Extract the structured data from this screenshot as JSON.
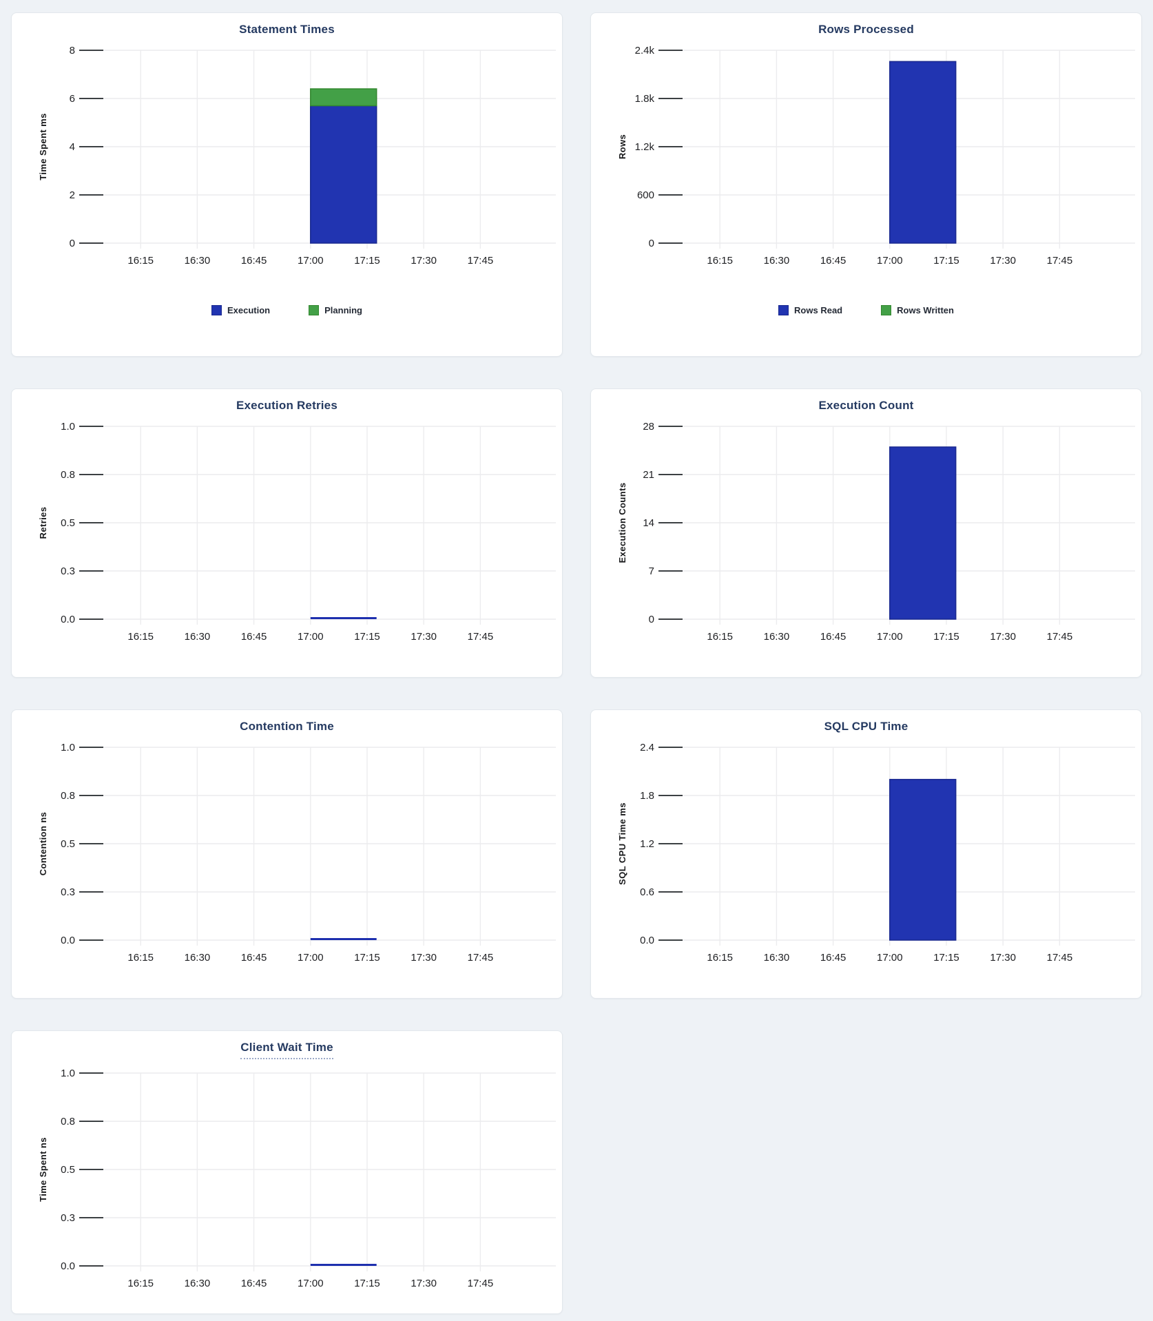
{
  "chart_data": [
    {
      "id": "statement-times",
      "type": "bar",
      "title": "Statement Times",
      "title_underlined": false,
      "ylabel": "Time Spent ms",
      "ymax": 8,
      "ytick_labels": [
        "8",
        "6",
        "4",
        "2",
        "0"
      ],
      "x_tick_labels": [
        "16:15",
        "16:30",
        "16:45",
        "17:00",
        "17:15",
        "17:30",
        "17:45"
      ],
      "x_tick_minutes": [
        15,
        30,
        45,
        60,
        75,
        90,
        105
      ],
      "x_domain_minutes": [
        0,
        125
      ],
      "bar_x_minutes": [
        60,
        77.5
      ],
      "grid": "on",
      "legend_position": "bottom-center",
      "series": [
        {
          "name": "Execution",
          "value": 5.7,
          "color": "#2134b1",
          "border": "#19288f"
        },
        {
          "name": "Planning",
          "value": 0.7,
          "color": "#43a047",
          "border": "#33872f"
        }
      ],
      "legend": [
        {
          "label": "Execution",
          "color": "#2134b1",
          "border": "#19288f"
        },
        {
          "label": "Planning",
          "color": "#43a047",
          "border": "#33872f"
        }
      ]
    },
    {
      "id": "rows-processed",
      "type": "bar",
      "title": "Rows Processed",
      "title_underlined": false,
      "ylabel": "Rows",
      "ymax": 2400,
      "ytick_labels": [
        "2.4k",
        "1.8k",
        "1.2k",
        "600",
        "0"
      ],
      "x_tick_labels": [
        "16:15",
        "16:30",
        "16:45",
        "17:00",
        "17:15",
        "17:30",
        "17:45"
      ],
      "x_tick_minutes": [
        15,
        30,
        45,
        60,
        75,
        90,
        105
      ],
      "x_domain_minutes": [
        0,
        125
      ],
      "bar_x_minutes": [
        60,
        77.5
      ],
      "grid": "on",
      "legend_position": "bottom-center",
      "series": [
        {
          "name": "Rows Read",
          "value": 2260,
          "color": "#2134b1",
          "border": "#19288f"
        },
        {
          "name": "Rows Written",
          "value": 0,
          "color": "#43a047",
          "border": "#33872f"
        }
      ],
      "legend": [
        {
          "label": "Rows Read",
          "color": "#2134b1",
          "border": "#19288f"
        },
        {
          "label": "Rows Written",
          "color": "#43a047",
          "border": "#33872f"
        }
      ]
    },
    {
      "id": "execution-retries",
      "type": "bar",
      "title": "Execution Retries",
      "title_underlined": false,
      "ylabel": "Retries",
      "ymax": 1,
      "ytick_labels": [
        "1.0",
        "0.8",
        "0.5",
        "0.3",
        "0.0"
      ],
      "x_tick_labels": [
        "16:15",
        "16:30",
        "16:45",
        "17:00",
        "17:15",
        "17:30",
        "17:45"
      ],
      "x_tick_minutes": [
        15,
        30,
        45,
        60,
        75,
        90,
        105
      ],
      "x_domain_minutes": [
        0,
        125
      ],
      "bar_x_minutes": [
        60,
        77.5
      ],
      "grid": "on",
      "legend_position": "none",
      "series": [
        {
          "name": "Retries",
          "value": 0,
          "color": "#2134b1",
          "border": "#19288f"
        }
      ],
      "zero_line_color": "#1d2fae"
    },
    {
      "id": "execution-count",
      "type": "bar",
      "title": "Execution Count",
      "title_underlined": false,
      "ylabel": "Execution Counts",
      "ymax": 28,
      "ytick_labels": [
        "28",
        "21",
        "14",
        "7",
        "0"
      ],
      "x_tick_labels": [
        "16:15",
        "16:30",
        "16:45",
        "17:00",
        "17:15",
        "17:30",
        "17:45"
      ],
      "x_tick_minutes": [
        15,
        30,
        45,
        60,
        75,
        90,
        105
      ],
      "x_domain_minutes": [
        0,
        125
      ],
      "bar_x_minutes": [
        60,
        77.5
      ],
      "grid": "on",
      "legend_position": "none",
      "series": [
        {
          "name": "Execution Count",
          "value": 25,
          "color": "#2134b1",
          "border": "#19288f"
        }
      ]
    },
    {
      "id": "contention-time",
      "type": "bar",
      "title": "Contention Time",
      "title_underlined": false,
      "ylabel": "Contention ns",
      "ymax": 1,
      "ytick_labels": [
        "1.0",
        "0.8",
        "0.5",
        "0.3",
        "0.0"
      ],
      "x_tick_labels": [
        "16:15",
        "16:30",
        "16:45",
        "17:00",
        "17:15",
        "17:30",
        "17:45"
      ],
      "x_tick_minutes": [
        15,
        30,
        45,
        60,
        75,
        90,
        105
      ],
      "x_domain_minutes": [
        0,
        125
      ],
      "bar_x_minutes": [
        60,
        77.5
      ],
      "grid": "on",
      "legend_position": "none",
      "series": [
        {
          "name": "Contention",
          "value": 0,
          "color": "#2134b1",
          "border": "#19288f"
        }
      ],
      "zero_line_color": "#1d2fae"
    },
    {
      "id": "sql-cpu-time",
      "type": "bar",
      "title": "SQL CPU Time",
      "title_underlined": false,
      "ylabel": "SQL CPU Time ms",
      "ymax": 2.4,
      "ytick_labels": [
        "2.4",
        "1.8",
        "1.2",
        "0.6",
        "0.0"
      ],
      "x_tick_labels": [
        "16:15",
        "16:30",
        "16:45",
        "17:00",
        "17:15",
        "17:30",
        "17:45"
      ],
      "x_tick_minutes": [
        15,
        30,
        45,
        60,
        75,
        90,
        105
      ],
      "x_domain_minutes": [
        0,
        125
      ],
      "bar_x_minutes": [
        60,
        77.5
      ],
      "grid": "on",
      "legend_position": "none",
      "series": [
        {
          "name": "SQL CPU Time",
          "value": 2.0,
          "color": "#2134b1",
          "border": "#19288f"
        }
      ]
    },
    {
      "id": "client-wait-time",
      "type": "bar",
      "title": "Client Wait Time",
      "title_underlined": true,
      "ylabel": "Time Spent ns",
      "ymax": 1,
      "ytick_labels": [
        "1.0",
        "0.8",
        "0.5",
        "0.3",
        "0.0"
      ],
      "x_tick_labels": [
        "16:15",
        "16:30",
        "16:45",
        "17:00",
        "17:15",
        "17:30",
        "17:45"
      ],
      "x_tick_minutes": [
        15,
        30,
        45,
        60,
        75,
        90,
        105
      ],
      "x_domain_minutes": [
        0,
        125
      ],
      "bar_x_minutes": [
        60,
        77.5
      ],
      "grid": "on",
      "legend_position": "none",
      "series": [
        {
          "name": "Client Wait",
          "value": 0,
          "color": "#2134b1",
          "border": "#19288f"
        }
      ],
      "zero_line_color": "#1d2fae"
    }
  ],
  "colors": {
    "page_background": "#eef2f6",
    "card_background": "#ffffff",
    "title_text": "#253a61",
    "axis_text": "#202124",
    "gridline": "#ececee",
    "bar_blue": "#2134b1",
    "bar_green": "#43a047"
  }
}
